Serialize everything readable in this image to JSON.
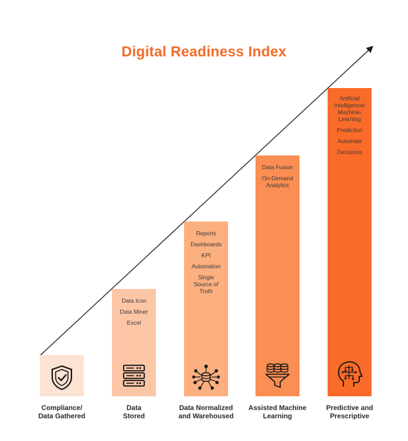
{
  "title": "Digital Readiness Index",
  "stages": [
    {
      "label": "Compliance/\nData Gathered",
      "items": [],
      "icon": "shield-check-icon",
      "color": "#fde3d4"
    },
    {
      "label": "Data\nStored",
      "items": [
        "Data Icon",
        "Data Miner",
        "Excel"
      ],
      "icon": "server-stack-icon",
      "color": "#fcc6a6"
    },
    {
      "label": "Data Normalized\nand Warehoused",
      "items": [
        "Reports",
        "Dashboards",
        "KPI",
        "Automation",
        "Single\nSource of\nTruth"
      ],
      "icon": "data-network-icon",
      "color": "#fcaf7f"
    },
    {
      "label": "Assisted Machine\nLearning",
      "items": [
        "Data Fusion",
        "On-Demand\nAnalytics"
      ],
      "icon": "data-funnel-icon",
      "color": "#fb8e52"
    },
    {
      "label": "Predictive and\nPrescriptive",
      "items": [
        "Artificial\nIntelligence/\nMachine-\nLearning",
        "Prediction",
        "Automate",
        "Decisions"
      ],
      "icon": "brain-head-icon",
      "color": "#fa6b29"
    }
  ]
}
